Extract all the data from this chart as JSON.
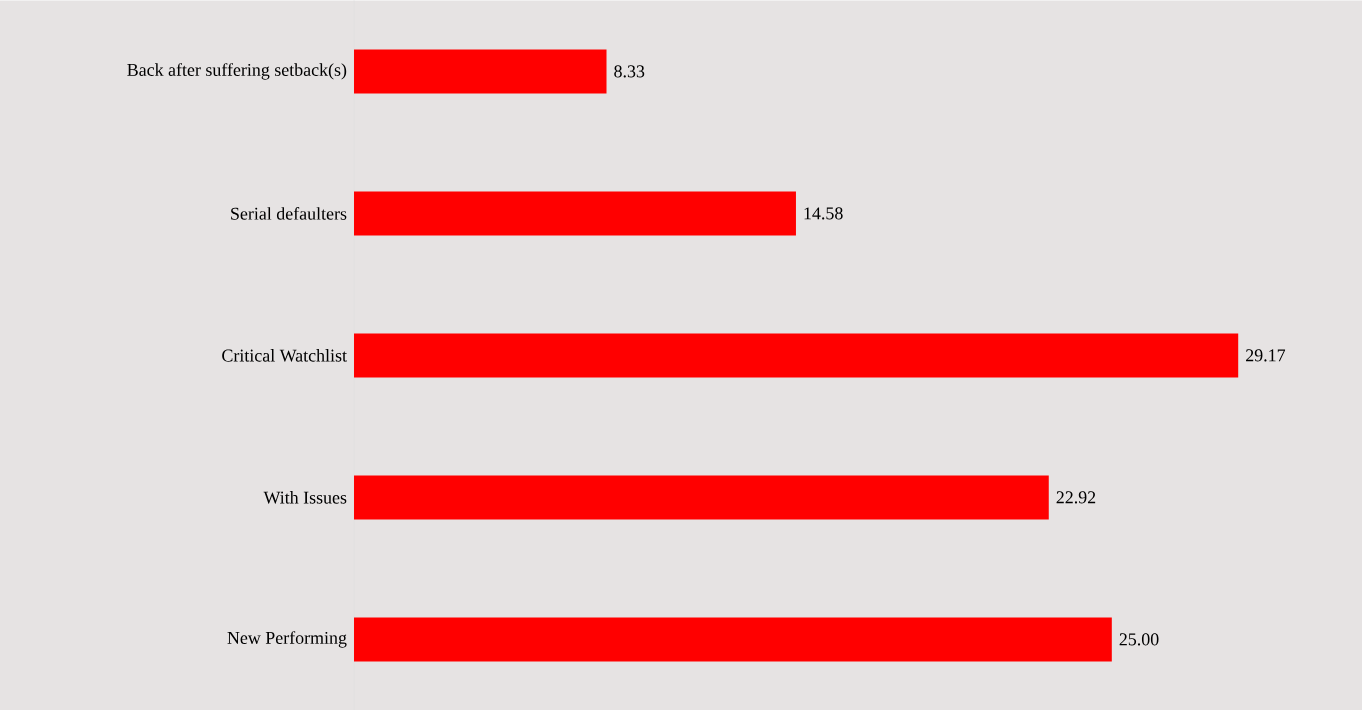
{
  "chart_data": {
    "type": "bar",
    "orientation": "horizontal",
    "categories": [
      "Back after suffering setback(s)",
      "Serial defaulters",
      "Critical Watchlist",
      "With Issues",
      "New Performing"
    ],
    "values": [
      8.33,
      14.58,
      29.17,
      22.92,
      25.0
    ],
    "value_labels": [
      "8.33",
      "14.58",
      "29.17",
      "22.92",
      "25.00"
    ],
    "color": "#ff0000"
  }
}
